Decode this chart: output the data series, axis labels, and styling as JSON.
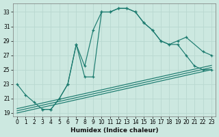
{
  "xlabel": "Humidex (Indice chaleur)",
  "bg_color": "#cce8e0",
  "grid_color": "#b8d8d0",
  "line_color": "#1a7a6e",
  "xlim": [
    -0.5,
    23.5
  ],
  "ylim": [
    18.5,
    34.2
  ],
  "xticks": [
    0,
    1,
    2,
    3,
    4,
    5,
    6,
    7,
    8,
    9,
    10,
    11,
    12,
    13,
    14,
    15,
    16,
    17,
    18,
    19,
    20,
    21,
    22,
    23
  ],
  "yticks": [
    19,
    21,
    23,
    25,
    27,
    29,
    31,
    33
  ],
  "curve1_x": [
    0,
    1,
    2,
    3,
    4,
    5,
    6,
    7,
    8,
    9,
    10,
    11,
    12,
    13,
    14,
    15,
    16,
    17,
    18,
    19,
    20,
    21,
    22,
    23
  ],
  "curve1_y": [
    23,
    21.5,
    20.5,
    19.5,
    19.5,
    21.0,
    23.0,
    28.5,
    25.5,
    30.5,
    33.0,
    33.0,
    33.5,
    33.5,
    33.0,
    31.5,
    30.5,
    29.0,
    28.5,
    28.5,
    27.0,
    25.5,
    25.0,
    25.0
  ],
  "curve2_x": [
    3,
    4,
    5,
    6,
    7,
    8,
    9,
    10,
    11,
    12,
    13,
    14,
    15,
    16,
    17,
    18,
    19,
    20,
    22,
    23
  ],
  "curve2_y": [
    19.5,
    19.5,
    21.0,
    23.0,
    28.5,
    24.0,
    24.0,
    33.0,
    33.0,
    33.5,
    33.5,
    33.0,
    31.5,
    30.5,
    29.0,
    28.5,
    29.0,
    29.5,
    27.5,
    27.0
  ],
  "line1_x": [
    0,
    23
  ],
  "line1_y": [
    19.0,
    25.0
  ],
  "line2_x": [
    0,
    23
  ],
  "line2_y": [
    19.3,
    25.3
  ],
  "line3_x": [
    0,
    23
  ],
  "line3_y": [
    19.6,
    25.6
  ]
}
